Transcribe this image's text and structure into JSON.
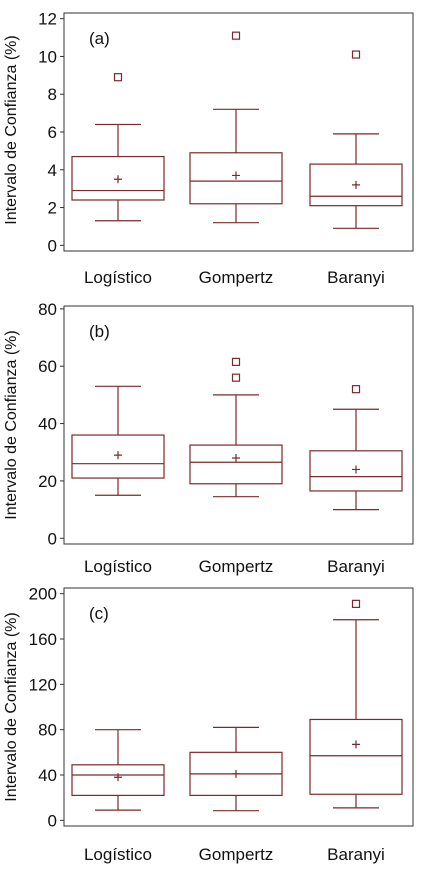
{
  "colors": {
    "box": "#7a2a2a",
    "axis": "#333333"
  },
  "chart_data": [
    {
      "type": "box",
      "label": "(a)",
      "ylabel": "Intervalo de Confianza (%)",
      "categories": [
        "Logístico",
        "Gompertz",
        "Baranyi"
      ],
      "yticks": [
        0,
        2,
        4,
        6,
        8,
        10,
        12
      ],
      "ylim": [
        -0.3,
        12.3
      ],
      "boxes": [
        {
          "min": 1.3,
          "q1": 2.4,
          "median": 2.9,
          "q3": 4.7,
          "max": 6.4,
          "mean": 3.5,
          "outliers": [
            8.9
          ]
        },
        {
          "min": 1.2,
          "q1": 2.2,
          "median": 3.4,
          "q3": 4.9,
          "max": 7.2,
          "mean": 3.7,
          "outliers": [
            11.1
          ]
        },
        {
          "min": 0.9,
          "q1": 2.1,
          "median": 2.6,
          "q3": 4.3,
          "max": 5.9,
          "mean": 3.2,
          "outliers": [
            10.1
          ]
        }
      ]
    },
    {
      "type": "box",
      "label": "(b)",
      "ylabel": "Intervalo de Confianza (%)",
      "categories": [
        "Logístico",
        "Gompertz",
        "Baranyi"
      ],
      "yticks": [
        0,
        20,
        40,
        60,
        80
      ],
      "ylim": [
        -2,
        81
      ],
      "boxes": [
        {
          "min": 15,
          "q1": 21,
          "median": 26,
          "q3": 36,
          "max": 53,
          "mean": 29,
          "outliers": []
        },
        {
          "min": 14.5,
          "q1": 19,
          "median": 26.5,
          "q3": 32.5,
          "max": 50,
          "mean": 28,
          "outliers": [
            56,
            61.5
          ]
        },
        {
          "min": 10,
          "q1": 16.5,
          "median": 21.5,
          "q3": 30.5,
          "max": 45,
          "mean": 24,
          "outliers": [
            52
          ]
        }
      ]
    },
    {
      "type": "box",
      "label": "(c)",
      "ylabel": "Intervalo de Confianza (%)",
      "categories": [
        "Logístico",
        "Gompertz",
        "Baranyi"
      ],
      "yticks": [
        0,
        40,
        80,
        120,
        160,
        200
      ],
      "ylim": [
        -5,
        205
      ],
      "boxes": [
        {
          "min": 9,
          "q1": 22,
          "median": 40,
          "q3": 49,
          "max": 80,
          "mean": 38,
          "outliers": []
        },
        {
          "min": 8.5,
          "q1": 22,
          "median": 41,
          "q3": 60,
          "max": 82,
          "mean": 41,
          "outliers": []
        },
        {
          "min": 11,
          "q1": 23,
          "median": 57,
          "q3": 89,
          "max": 177,
          "mean": 67,
          "outliers": [
            191
          ]
        }
      ]
    }
  ]
}
